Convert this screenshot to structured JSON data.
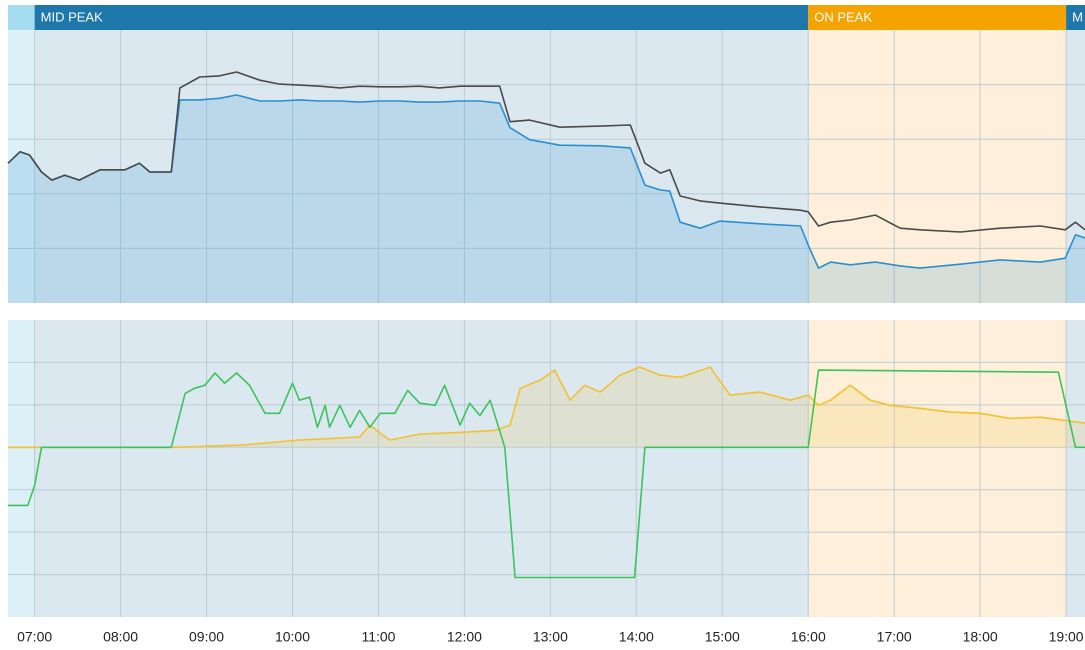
{
  "chart_data": [
    {
      "type": "line",
      "bands": [
        {
          "start": 6.69,
          "end": 7,
          "color": "#a6dcf0",
          "background": "#dcf0f8"
        },
        {
          "label": "MID PEAK",
          "start": 7,
          "end": 16,
          "color": "#1d77ab",
          "background": "#dbe8f0"
        },
        {
          "label": "ON PEAK",
          "start": 16,
          "end": 19,
          "color": "#f5a300",
          "background": "#fdefd9"
        },
        {
          "label": "M",
          "start": 19,
          "end": 19.22,
          "color": "#1d77ab",
          "background": "#dbe8f0"
        }
      ],
      "xlim": [
        6.69,
        19.22
      ],
      "ylim": [
        0,
        5
      ],
      "yticks": [
        1,
        2,
        3,
        4
      ],
      "grid": true,
      "series": [
        {
          "color": "#2a8fd0",
          "fill": "rgba(42,143,208,0.18)",
          "x": [
            6.69,
            6.83,
            6.94,
            7.08,
            7.2,
            7.35,
            7.52,
            7.76,
            8.05,
            8.22,
            8.34,
            8.59,
            8.69,
            8.92,
            9.15,
            9.35,
            9.62,
            9.85,
            10.08,
            10.32,
            10.55,
            10.78,
            11.02,
            11.25,
            11.48,
            11.71,
            11.95,
            12.18,
            12.41,
            12.53,
            12.76,
            13.11,
            13.58,
            13.93,
            14.1,
            14.28,
            14.39,
            14.51,
            14.74,
            14.97,
            15.44,
            15.91,
            16.0,
            16.12,
            16.26,
            16.49,
            16.78,
            17.07,
            17.3,
            17.77,
            18.23,
            18.7,
            18.99,
            19.11,
            19.22
          ],
          "values": [
            2.56,
            2.77,
            2.71,
            2.4,
            2.25,
            2.34,
            2.25,
            2.44,
            2.44,
            2.56,
            2.4,
            2.4,
            3.72,
            3.72,
            3.75,
            3.81,
            3.7,
            3.7,
            3.72,
            3.7,
            3.7,
            3.68,
            3.7,
            3.7,
            3.68,
            3.68,
            3.7,
            3.7,
            3.66,
            3.21,
            2.99,
            2.89,
            2.88,
            2.84,
            2.16,
            2.07,
            2.05,
            1.48,
            1.37,
            1.5,
            1.45,
            1.41,
            1.06,
            0.64,
            0.75,
            0.7,
            0.75,
            0.68,
            0.64,
            0.71,
            0.79,
            0.75,
            0.82,
            1.25,
            1.19
          ]
        },
        {
          "color": "#4a4a4a",
          "x": [
            6.69,
            6.83,
            6.94,
            7.08,
            7.2,
            7.35,
            7.52,
            7.76,
            8.05,
            8.22,
            8.34,
            8.59,
            8.69,
            8.92,
            9.15,
            9.35,
            9.62,
            9.85,
            10.08,
            10.32,
            10.55,
            10.78,
            11.02,
            11.25,
            11.48,
            11.71,
            11.95,
            12.18,
            12.41,
            12.53,
            12.76,
            13.11,
            13.58,
            13.93,
            14.1,
            14.28,
            14.39,
            14.51,
            14.74,
            14.97,
            15.44,
            15.91,
            16.0,
            16.12,
            16.26,
            16.49,
            16.78,
            17.07,
            17.3,
            17.77,
            18.23,
            18.7,
            18.99,
            19.11,
            19.22
          ],
          "values": [
            2.56,
            2.77,
            2.71,
            2.4,
            2.25,
            2.34,
            2.25,
            2.44,
            2.44,
            2.56,
            2.4,
            2.4,
            3.94,
            4.14,
            4.16,
            4.23,
            4.08,
            4.01,
            3.99,
            3.97,
            3.94,
            3.97,
            3.96,
            3.96,
            3.97,
            3.94,
            3.97,
            3.97,
            3.97,
            3.32,
            3.35,
            3.22,
            3.24,
            3.26,
            2.56,
            2.38,
            2.44,
            1.96,
            1.87,
            1.83,
            1.76,
            1.7,
            1.67,
            1.41,
            1.48,
            1.52,
            1.61,
            1.37,
            1.34,
            1.3,
            1.37,
            1.41,
            1.34,
            1.48,
            1.34
          ]
        }
      ]
    },
    {
      "type": "line",
      "xlim": [
        6.69,
        19.22
      ],
      "ylim": [
        -4,
        3
      ],
      "yticks": [
        -3,
        -2,
        -1,
        0,
        1,
        2
      ],
      "grid": true,
      "xticks": [
        {
          "value": 7,
          "label": "07:00"
        },
        {
          "value": 8,
          "label": "08:00"
        },
        {
          "value": 9,
          "label": "09:00"
        },
        {
          "value": 10,
          "label": "10:00"
        },
        {
          "value": 11,
          "label": "11:00"
        },
        {
          "value": 12,
          "label": "12:00"
        },
        {
          "value": 13,
          "label": "13:00"
        },
        {
          "value": 14,
          "label": "14:00"
        },
        {
          "value": 15,
          "label": "15:00"
        },
        {
          "value": 16,
          "label": "16:00"
        },
        {
          "value": 17,
          "label": "17:00"
        },
        {
          "value": 18,
          "label": "18:00"
        },
        {
          "value": 19,
          "label": "19:00"
        }
      ],
      "series": [
        {
          "color": "#f4c030",
          "fill": "rgba(244,192,48,0.16)",
          "x": [
            6.69,
            8.59,
            9.39,
            10.08,
            10.78,
            10.9,
            11.13,
            11.48,
            11.95,
            12.36,
            12.53,
            12.65,
            12.88,
            13.05,
            13.23,
            13.4,
            13.58,
            13.81,
            14.04,
            14.28,
            14.51,
            14.86,
            15.09,
            15.44,
            15.79,
            16.0,
            16.12,
            16.26,
            16.49,
            16.72,
            16.95,
            17.3,
            17.65,
            18.0,
            18.35,
            18.7,
            19.22
          ],
          "values": [
            0,
            0,
            0.05,
            0.17,
            0.24,
            0.52,
            0.17,
            0.31,
            0.35,
            0.4,
            0.52,
            1.39,
            1.58,
            1.82,
            1.11,
            1.46,
            1.3,
            1.7,
            1.89,
            1.7,
            1.65,
            1.89,
            1.23,
            1.3,
            1.11,
            1.23,
            0.99,
            1.11,
            1.46,
            1.11,
            0.99,
            0.92,
            0.83,
            0.8,
            0.68,
            0.71,
            0.57
          ]
        },
        {
          "color": "#3cc45c",
          "x": [
            6.69,
            6.92,
            7.0,
            7.08,
            8.59,
            8.75,
            8.86,
            8.98,
            9.1,
            9.21,
            9.35,
            9.5,
            9.68,
            9.85,
            10.0,
            10.08,
            10.2,
            10.29,
            10.38,
            10.43,
            10.55,
            10.67,
            10.78,
            10.9,
            11.02,
            11.19,
            11.34,
            11.48,
            11.66,
            11.77,
            11.95,
            12.06,
            12.18,
            12.3,
            12.47,
            12.59,
            13.98,
            14.1,
            16.0,
            16.12,
            18.91,
            19.11,
            19.22
          ],
          "values": [
            -1.37,
            -1.37,
            -0.9,
            0,
            0,
            1.27,
            1.39,
            1.46,
            1.75,
            1.51,
            1.75,
            1.46,
            0.8,
            0.8,
            1.51,
            1.11,
            1.18,
            0.47,
            0.99,
            0.47,
            0.99,
            0.47,
            0.87,
            0.47,
            0.8,
            0.8,
            1.34,
            1.04,
            0.99,
            1.46,
            0.52,
            1.04,
            0.75,
            1.11,
            0,
            -3.07,
            -3.07,
            0,
            0,
            1.82,
            1.77,
            0,
            0
          ]
        }
      ]
    }
  ]
}
